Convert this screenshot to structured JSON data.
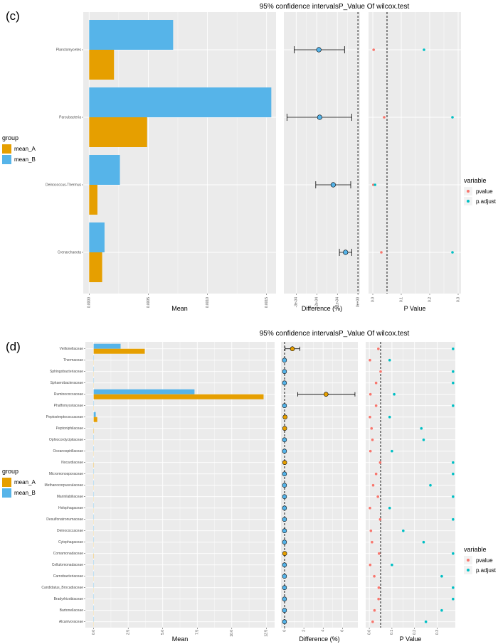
{
  "colors": {
    "mean_A": "#E69F00",
    "mean_B": "#56B4E9",
    "pvalue": "#F8766D",
    "p.adjust": "#00BFC4",
    "panel_bg": "#EBEBEB"
  },
  "chart_data": [
    {
      "type": "bar",
      "panel_label": "(c)",
      "title": "95% confidence intervalsP_Value Of wilcox.test",
      "categories": [
        "Planctomycetes",
        "Parcubacteria",
        "Deinococcus-Thermus",
        "Crenarchaeota"
      ],
      "mean": {
        "xlabel": "Mean",
        "ticks": [
          0,
          0.0005,
          0.001,
          0.0015
        ],
        "tick_labels": [
          "0.0000",
          "0.0005",
          "0.0010",
          "0.0015"
        ],
        "xlim": [
          -5e-05,
          0.00158
        ],
        "series": [
          {
            "name": "mean_A",
            "values": [
              0.00021,
              0.00049,
              7e-05,
              0.00011
            ]
          },
          {
            "name": "mean_B",
            "values": [
              0.00071,
              0.00154,
              0.00026,
              0.00013
            ]
          }
        ]
      },
      "difference": {
        "xlabel": "Difference (%)",
        "ticks": [
          -0.0003,
          -0.0002,
          -0.0001,
          0
        ],
        "tick_labels": [
          "-3e-04",
          "-2e-04",
          "-1e-04",
          "0e+00"
        ],
        "xlim": [
          -0.00036,
          1e-05
        ],
        "estimate": [
          -0.00019,
          -0.000186,
          -0.00012,
          -6e-05
        ],
        "ci_low": [
          -0.00031,
          -0.000345,
          -0.000205,
          -9e-05
        ],
        "ci_high": [
          -6.5e-05,
          -3e-05,
          -3.5e-05,
          -3e-05
        ],
        "group": [
          "mean_B",
          "mean_B",
          "mean_B",
          "mean_B"
        ]
      },
      "pvalue": {
        "xlabel": "P Value",
        "ticks": [
          0,
          0.1,
          0.2,
          0.3
        ],
        "tick_labels": [
          "0.0",
          "0.1",
          "0.2",
          "0.3"
        ],
        "xlim": [
          -0.015,
          0.31
        ],
        "threshold": 0.05,
        "pvalue": [
          0.003,
          0.04,
          0.002,
          0.03
        ],
        "p.adjust": [
          0.18,
          0.28,
          0.008,
          0.28
        ]
      },
      "legend_group": {
        "title": "group",
        "items": [
          "mean_A",
          "mean_B"
        ]
      },
      "legend_variable": {
        "title": "variable",
        "items": [
          "pvalue",
          "p.adjust"
        ]
      }
    },
    {
      "type": "bar",
      "panel_label": "(d)",
      "title": "95% confidence intervalsP_Value Of wilcox.test",
      "categories": [
        "Veillonellaceae",
        "Thermaceae",
        "Sphingobacteriaceae",
        "Sphaerobacteraceae",
        "Ruminococcaceae",
        "Phaffomycetaceae",
        "Peptostreptococcaceae",
        "Peptoniphilaceae",
        "Ophiocordycipitaceae",
        "Oceanospirillaceae",
        "Nocardiaceae",
        "Micromonosporaceae",
        "Methanocorpusculaceae",
        "Marinilabiliaceae",
        "Holophagaceae",
        "Desulfonatronumaceae",
        "Deinococcaceae",
        "Cytophagaceae",
        "Comamonadaceae",
        "Cellulomonadaceae",
        "Carnobacteriaceae",
        "Candidatus_Brocadiaceae",
        "Bradyrhizobiaceae",
        "Bartonellaceae",
        "Alcanivoraceae"
      ],
      "mean": {
        "xlabel": "Mean",
        "ticks": [
          0,
          2.5,
          5,
          7.5,
          10,
          12.5
        ],
        "tick_labels": [
          "0.0",
          "2.5",
          "5.0",
          "7.5",
          "10.0",
          "12.5"
        ],
        "xlim": [
          -0.6,
          13.1
        ],
        "series": [
          {
            "name": "mean_A",
            "values": [
              3.7,
              0.01,
              0.01,
              0.01,
              12.3,
              0.01,
              0.26,
              0.02,
              0.01,
              0.01,
              0.02,
              0.01,
              0.01,
              0.01,
              0.01,
              0.01,
              0.01,
              0.01,
              0.02,
              0.01,
              0.01,
              0.01,
              0.01,
              0.01,
              0.01
            ]
          },
          {
            "name": "mean_B",
            "values": [
              1.95,
              0.02,
              0.02,
              0.02,
              7.3,
              0.02,
              0.15,
              0.01,
              0.02,
              0.02,
              0.01,
              0.02,
              0.02,
              0.02,
              0.02,
              0.02,
              0.02,
              0.02,
              0.01,
              0.02,
              0.02,
              0.02,
              0.02,
              0.02,
              0.02
            ]
          }
        ]
      },
      "difference": {
        "xlabel": "Difference (%)",
        "ticks": [
          0,
          2,
          4,
          6
        ],
        "tick_labels": [
          "0",
          "2",
          "4",
          "6"
        ],
        "xlim": [
          -0.37,
          7.6
        ],
        "estimate": [
          0.81,
          -0.01,
          -0.01,
          -0.01,
          4.3,
          -0.01,
          0.05,
          0.01,
          -0.01,
          -0.01,
          0.01,
          -0.01,
          -0.01,
          -0.01,
          -0.01,
          -0.01,
          -0.01,
          -0.01,
          0.01,
          -0.01,
          -0.01,
          -0.01,
          -0.01,
          -0.01,
          -0.01
        ],
        "ci_low": [
          0.05,
          -0.02,
          -0.02,
          -0.02,
          1.36,
          -0.02,
          0.01,
          0.0,
          -0.02,
          -0.02,
          0.0,
          -0.02,
          -0.02,
          -0.02,
          -0.02,
          -0.02,
          -0.02,
          -0.02,
          0.0,
          -0.02,
          -0.02,
          -0.02,
          -0.02,
          -0.02,
          -0.02
        ],
        "ci_high": [
          1.58,
          0.0,
          0.0,
          0.0,
          7.3,
          0.0,
          0.1,
          0.02,
          0.0,
          0.0,
          0.02,
          0.0,
          0.0,
          0.0,
          0.0,
          0.0,
          0.0,
          0.0,
          0.02,
          0.0,
          0.0,
          0.0,
          0.0,
          0.0,
          0.0
        ],
        "group": [
          "mean_A",
          "mean_B",
          "mean_B",
          "mean_B",
          "mean_A",
          "mean_B",
          "mean_A",
          "mean_A",
          "mean_B",
          "mean_B",
          "mean_A",
          "mean_B",
          "mean_B",
          "mean_B",
          "mean_B",
          "mean_B",
          "mean_B",
          "mean_B",
          "mean_A",
          "mean_B",
          "mean_B",
          "mean_B",
          "mean_B",
          "mean_B",
          "mean_B"
        ]
      },
      "pvalue": {
        "xlabel": "P Value",
        "ticks": [
          0,
          0.1,
          0.2,
          0.3
        ],
        "tick_labels": [
          "0.0",
          "0.1",
          "0.2",
          "0.3"
        ],
        "xlim": [
          -0.016,
          0.38
        ],
        "threshold": 0.05,
        "pvalue": [
          0.04,
          0.003,
          0.05,
          0.03,
          0.005,
          0.03,
          0.003,
          0.01,
          0.014,
          0.005,
          0.048,
          0.03,
          0.017,
          0.038,
          0.003,
          0.048,
          0.007,
          0.012,
          0.043,
          0.004,
          0.022,
          0.042,
          0.041,
          0.023,
          0.015
        ],
        "p.adjust": [
          0.37,
          0.09,
          0.37,
          0.37,
          0.11,
          0.37,
          0.09,
          0.23,
          0.24,
          0.1,
          0.37,
          0.37,
          0.27,
          0.37,
          0.09,
          0.37,
          0.15,
          0.24,
          0.37,
          0.1,
          0.32,
          0.37,
          0.37,
          0.32,
          0.25
        ]
      },
      "legend_group": {
        "title": "group",
        "items": [
          "mean_A",
          "mean_B"
        ]
      },
      "legend_variable": {
        "title": "variable",
        "items": [
          "pvalue",
          "p.adjust"
        ]
      }
    }
  ]
}
